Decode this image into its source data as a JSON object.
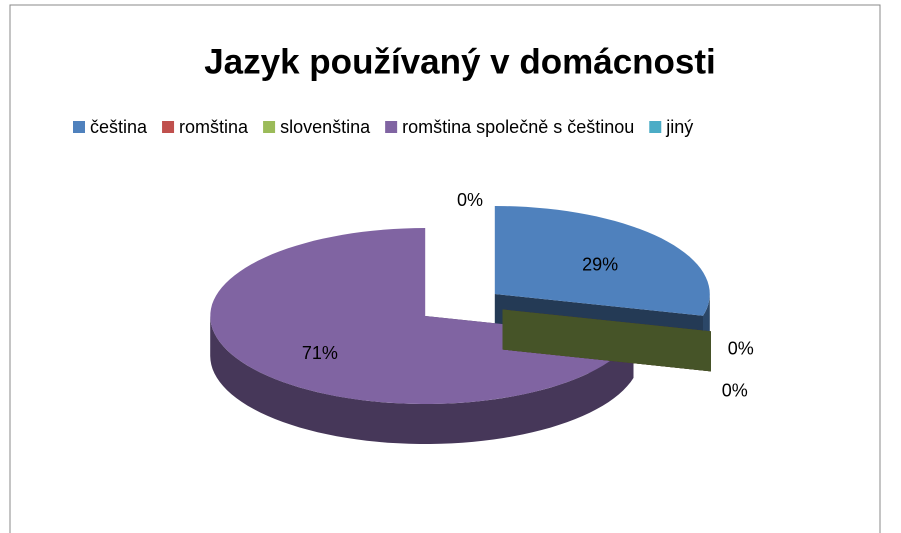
{
  "chart_data": {
    "type": "pie",
    "title": "Jazyk používaný v domácnosti",
    "categories": [
      "čeština",
      "romština",
      "slovenština",
      "romština společně s češtinou",
      "jiný"
    ],
    "values": [
      29,
      0,
      0,
      71,
      0
    ],
    "value_labels": [
      "29%",
      "0%",
      "0%",
      "71%",
      "0%"
    ],
    "colors": [
      "#4f81bd",
      "#c0504d",
      "#9bbb59",
      "#8064a2",
      "#4bacc6"
    ],
    "legend": "top"
  }
}
